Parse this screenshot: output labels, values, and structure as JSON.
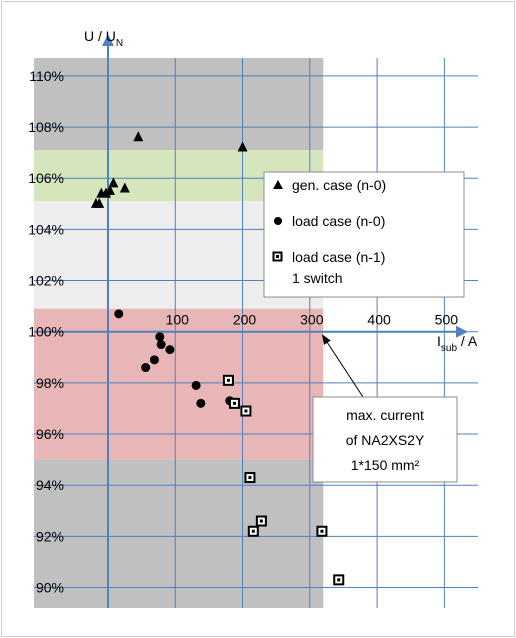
{
  "chart_data": {
    "type": "scatter",
    "title": "",
    "ylabel": {
      "main": "U / U",
      "sub": "N"
    },
    "xlabel": {
      "main": "I",
      "sub": "sub",
      "tail": " / A"
    },
    "xlim": [
      -110,
      550
    ],
    "ylim": [
      89.2,
      110.7
    ],
    "x_ticks": [
      100,
      200,
      300,
      400,
      500
    ],
    "y_ticks": [
      90,
      92,
      94,
      96,
      98,
      100,
      102,
      104,
      106,
      108,
      110
    ],
    "x_tick_labels": [
      "100",
      "200",
      "300",
      "400",
      "500"
    ],
    "y_tick_labels": [
      "90%",
      "92%",
      "94%",
      "96%",
      "98%",
      "100%",
      "102%",
      "104%",
      "106%",
      "108%",
      "110%"
    ],
    "x_grid_lines": [
      0,
      100,
      200,
      300,
      400,
      500
    ],
    "grid": true,
    "bands": [
      {
        "x0": -110,
        "x1": 320,
        "y0": 107.1,
        "y1": 110.7,
        "color": "#c0c0c0"
      },
      {
        "x0": -110,
        "x1": 320,
        "y0": 105.1,
        "y1": 107.1,
        "color": "#d5e6bd"
      },
      {
        "x0": -110,
        "x1": 320,
        "y0": 100.9,
        "y1": 105.1,
        "color": "#ededed"
      },
      {
        "x0": -110,
        "x1": 320,
        "y0": 95.0,
        "y1": 100.9,
        "color": "#e8b6b6"
      },
      {
        "x0": -110,
        "x1": 320,
        "y0": 89.2,
        "y1": 95.0,
        "color": "#c0c0c0"
      }
    ],
    "series": [
      {
        "name": "gen. case (n-0)",
        "marker": "triangle",
        "points": [
          [
            -18,
            105.0
          ],
          [
            -13,
            105.0
          ],
          [
            -10,
            105.4
          ],
          [
            -3,
            105.4
          ],
          [
            3,
            105.5
          ],
          [
            8,
            105.8
          ],
          [
            25,
            105.6
          ],
          [
            45,
            107.6
          ],
          [
            200,
            107.2
          ]
        ]
      },
      {
        "name": "load case (n-0)",
        "marker": "circle",
        "points": [
          [
            16,
            100.7
          ],
          [
            56,
            98.6
          ],
          [
            69,
            98.9
          ],
          [
            77,
            99.8
          ],
          [
            79,
            99.5
          ],
          [
            92,
            99.3
          ],
          [
            131,
            97.9
          ],
          [
            138,
            97.2
          ],
          [
            181,
            97.3
          ]
        ]
      },
      {
        "name": "load case (n-1)\n1 switch",
        "marker": "square",
        "points": [
          [
            179,
            98.1
          ],
          [
            188,
            97.2
          ],
          [
            205,
            96.9
          ],
          [
            211,
            94.3
          ],
          [
            216,
            92.2
          ],
          [
            228,
            92.6
          ],
          [
            318,
            92.2
          ],
          [
            343,
            90.3
          ]
        ]
      }
    ],
    "legend": {
      "position": "right-middle",
      "entries": [
        {
          "marker": "triangle",
          "label": "gen. case (n-0)"
        },
        {
          "marker": "circle",
          "label": "load case (n-0)"
        },
        {
          "marker": "square",
          "label": "load case (n-1)",
          "label2": "1 switch"
        }
      ]
    },
    "annotation": {
      "lines": [
        "max. current",
        "of NA2XS2Y",
        "1*150 mm²"
      ],
      "points_to_x": 318,
      "points_to_y": 99.9
    }
  }
}
